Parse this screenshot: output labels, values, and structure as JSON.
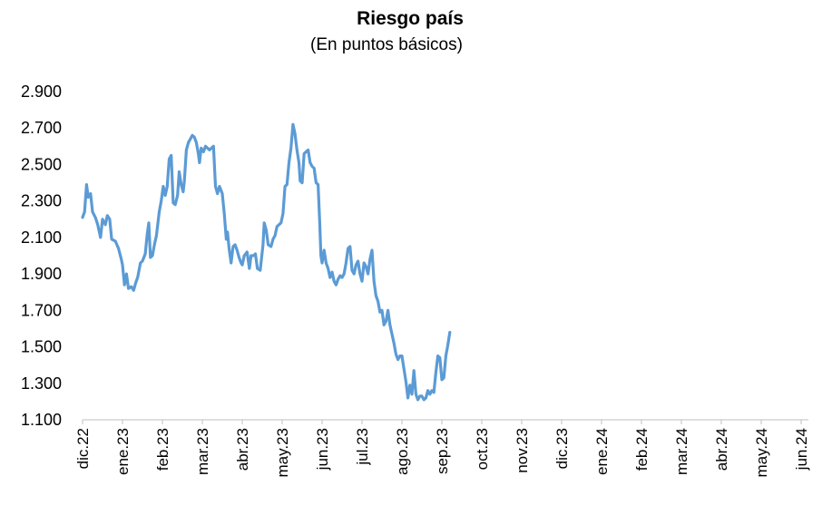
{
  "chart_data": {
    "type": "line",
    "title": "Riesgo país",
    "subtitle": "(En puntos básicos)",
    "xlabel": "",
    "ylabel": "",
    "ylim": [
      1100,
      2900
    ],
    "y_ticks": [
      1100,
      1300,
      1500,
      1700,
      1900,
      2100,
      2300,
      2500,
      2700,
      2900
    ],
    "y_tick_labels": [
      "1.100",
      "1.300",
      "1.500",
      "1.700",
      "1.900",
      "2.100",
      "2.300",
      "2.500",
      "2.700",
      "2.900"
    ],
    "x_tick_labels": [
      "dic.22",
      "ene.23",
      "feb.23",
      "mar.23",
      "abr.23",
      "may.23",
      "jun.23",
      "jul.23",
      "ago.23",
      "sep.23",
      "oct.23",
      "nov.23",
      "dic.23",
      "ene.24",
      "feb.24",
      "mar.24",
      "abr.24",
      "may.24",
      "jun.24"
    ],
    "grid": false,
    "legend": "none",
    "line_color": "#5b9bd5",
    "series": [
      {
        "values": [
          [
            0,
            2210
          ],
          [
            0.05,
            2240
          ],
          [
            0.1,
            2390
          ],
          [
            0.14,
            2320
          ],
          [
            0.2,
            2340
          ],
          [
            0.25,
            2240
          ],
          [
            0.32,
            2210
          ],
          [
            0.38,
            2170
          ],
          [
            0.45,
            2100
          ],
          [
            0.5,
            2200
          ],
          [
            0.57,
            2170
          ],
          [
            0.62,
            2220
          ],
          [
            0.68,
            2200
          ],
          [
            0.73,
            2090
          ],
          [
            0.82,
            2080
          ],
          [
            0.9,
            2040
          ],
          [
            0.97,
            1980
          ],
          [
            1.0,
            1950
          ],
          [
            1.05,
            1840
          ],
          [
            1.1,
            1900
          ],
          [
            1.15,
            1820
          ],
          [
            1.22,
            1830
          ],
          [
            1.28,
            1810
          ],
          [
            1.33,
            1850
          ],
          [
            1.38,
            1880
          ],
          [
            1.45,
            1960
          ],
          [
            1.5,
            1970
          ],
          [
            1.57,
            2010
          ],
          [
            1.62,
            2120
          ],
          [
            1.66,
            2180
          ],
          [
            1.7,
            1990
          ],
          [
            1.75,
            2000
          ],
          [
            1.8,
            2060
          ],
          [
            1.85,
            2110
          ],
          [
            1.92,
            2240
          ],
          [
            1.97,
            2300
          ],
          [
            2.02,
            2380
          ],
          [
            2.07,
            2330
          ],
          [
            2.12,
            2380
          ],
          [
            2.17,
            2530
          ],
          [
            2.22,
            2550
          ],
          [
            2.27,
            2290
          ],
          [
            2.32,
            2280
          ],
          [
            2.38,
            2330
          ],
          [
            2.42,
            2460
          ],
          [
            2.47,
            2390
          ],
          [
            2.52,
            2350
          ],
          [
            2.55,
            2410
          ],
          [
            2.6,
            2580
          ],
          [
            2.65,
            2620
          ],
          [
            2.7,
            2640
          ],
          [
            2.75,
            2660
          ],
          [
            2.8,
            2650
          ],
          [
            2.85,
            2620
          ],
          [
            2.9,
            2560
          ],
          [
            2.93,
            2510
          ],
          [
            2.97,
            2590
          ],
          [
            3.03,
            2570
          ],
          [
            3.08,
            2600
          ],
          [
            3.13,
            2590
          ],
          [
            3.18,
            2580
          ],
          [
            3.23,
            2590
          ],
          [
            3.28,
            2600
          ],
          [
            3.33,
            2380
          ],
          [
            3.38,
            2340
          ],
          [
            3.43,
            2380
          ],
          [
            3.5,
            2340
          ],
          [
            3.55,
            2230
          ],
          [
            3.6,
            2090
          ],
          [
            3.63,
            2130
          ],
          [
            3.67,
            2040
          ],
          [
            3.72,
            1960
          ],
          [
            3.77,
            2050
          ],
          [
            3.82,
            2060
          ],
          [
            3.87,
            2030
          ],
          [
            3.92,
            1990
          ],
          [
            3.97,
            1960
          ],
          [
            4.0,
            1950
          ],
          [
            4.05,
            2000
          ],
          [
            4.12,
            2020
          ],
          [
            4.18,
            1930
          ],
          [
            4.22,
            2000
          ],
          [
            4.28,
            2000
          ],
          [
            4.33,
            2010
          ],
          [
            4.38,
            1930
          ],
          [
            4.45,
            1920
          ],
          [
            4.52,
            2060
          ],
          [
            4.55,
            2180
          ],
          [
            4.6,
            2140
          ],
          [
            4.65,
            2060
          ],
          [
            4.72,
            2050
          ],
          [
            4.77,
            2090
          ],
          [
            4.82,
            2110
          ],
          [
            4.87,
            2160
          ],
          [
            4.92,
            2170
          ],
          [
            4.97,
            2180
          ],
          [
            5.02,
            2230
          ],
          [
            5.07,
            2380
          ],
          [
            5.12,
            2390
          ],
          [
            5.17,
            2510
          ],
          [
            5.22,
            2590
          ],
          [
            5.27,
            2720
          ],
          [
            5.32,
            2670
          ],
          [
            5.37,
            2580
          ],
          [
            5.42,
            2510
          ],
          [
            5.45,
            2410
          ],
          [
            5.5,
            2400
          ],
          [
            5.55,
            2560
          ],
          [
            5.6,
            2570
          ],
          [
            5.65,
            2580
          ],
          [
            5.7,
            2510
          ],
          [
            5.75,
            2490
          ],
          [
            5.8,
            2480
          ],
          [
            5.85,
            2400
          ],
          [
            5.9,
            2390
          ],
          [
            5.94,
            2180
          ],
          [
            5.97,
            2000
          ],
          [
            6.0,
            1960
          ],
          [
            6.05,
            2030
          ],
          [
            6.1,
            1960
          ],
          [
            6.15,
            1930
          ],
          [
            6.2,
            1880
          ],
          [
            6.25,
            1910
          ],
          [
            6.3,
            1860
          ],
          [
            6.35,
            1840
          ],
          [
            6.4,
            1870
          ],
          [
            6.45,
            1890
          ],
          [
            6.5,
            1880
          ],
          [
            6.55,
            1900
          ],
          [
            6.6,
            1960
          ],
          [
            6.65,
            2040
          ],
          [
            6.7,
            2050
          ],
          [
            6.75,
            1920
          ],
          [
            6.8,
            1900
          ],
          [
            6.85,
            1950
          ],
          [
            6.9,
            1970
          ],
          [
            6.95,
            1900
          ],
          [
            7.0,
            1860
          ],
          [
            7.05,
            1960
          ],
          [
            7.1,
            1940
          ],
          [
            7.15,
            1900
          ],
          [
            7.2,
            1980
          ],
          [
            7.25,
            2030
          ],
          [
            7.3,
            1860
          ],
          [
            7.35,
            1780
          ],
          [
            7.4,
            1750
          ],
          [
            7.45,
            1690
          ],
          [
            7.5,
            1700
          ],
          [
            7.55,
            1620
          ],
          [
            7.6,
            1640
          ],
          [
            7.65,
            1700
          ],
          [
            7.7,
            1620
          ],
          [
            7.75,
            1570
          ],
          [
            7.8,
            1520
          ],
          [
            7.85,
            1460
          ],
          [
            7.9,
            1430
          ],
          [
            7.95,
            1450
          ],
          [
            8.0,
            1450
          ],
          [
            8.05,
            1380
          ],
          [
            8.1,
            1310
          ],
          [
            8.15,
            1220
          ],
          [
            8.2,
            1290
          ],
          [
            8.25,
            1240
          ],
          [
            8.3,
            1370
          ],
          [
            8.35,
            1240
          ],
          [
            8.4,
            1210
          ],
          [
            8.45,
            1230
          ],
          [
            8.5,
            1230
          ],
          [
            8.55,
            1210
          ],
          [
            8.6,
            1220
          ],
          [
            8.65,
            1260
          ],
          [
            8.7,
            1240
          ],
          [
            8.75,
            1260
          ],
          [
            8.8,
            1250
          ],
          [
            8.85,
            1360
          ],
          [
            8.9,
            1450
          ],
          [
            8.95,
            1440
          ],
          [
            9.0,
            1320
          ],
          [
            9.05,
            1330
          ],
          [
            9.1,
            1450
          ],
          [
            9.15,
            1510
          ],
          [
            9.2,
            1580
          ]
        ]
      }
    ]
  }
}
